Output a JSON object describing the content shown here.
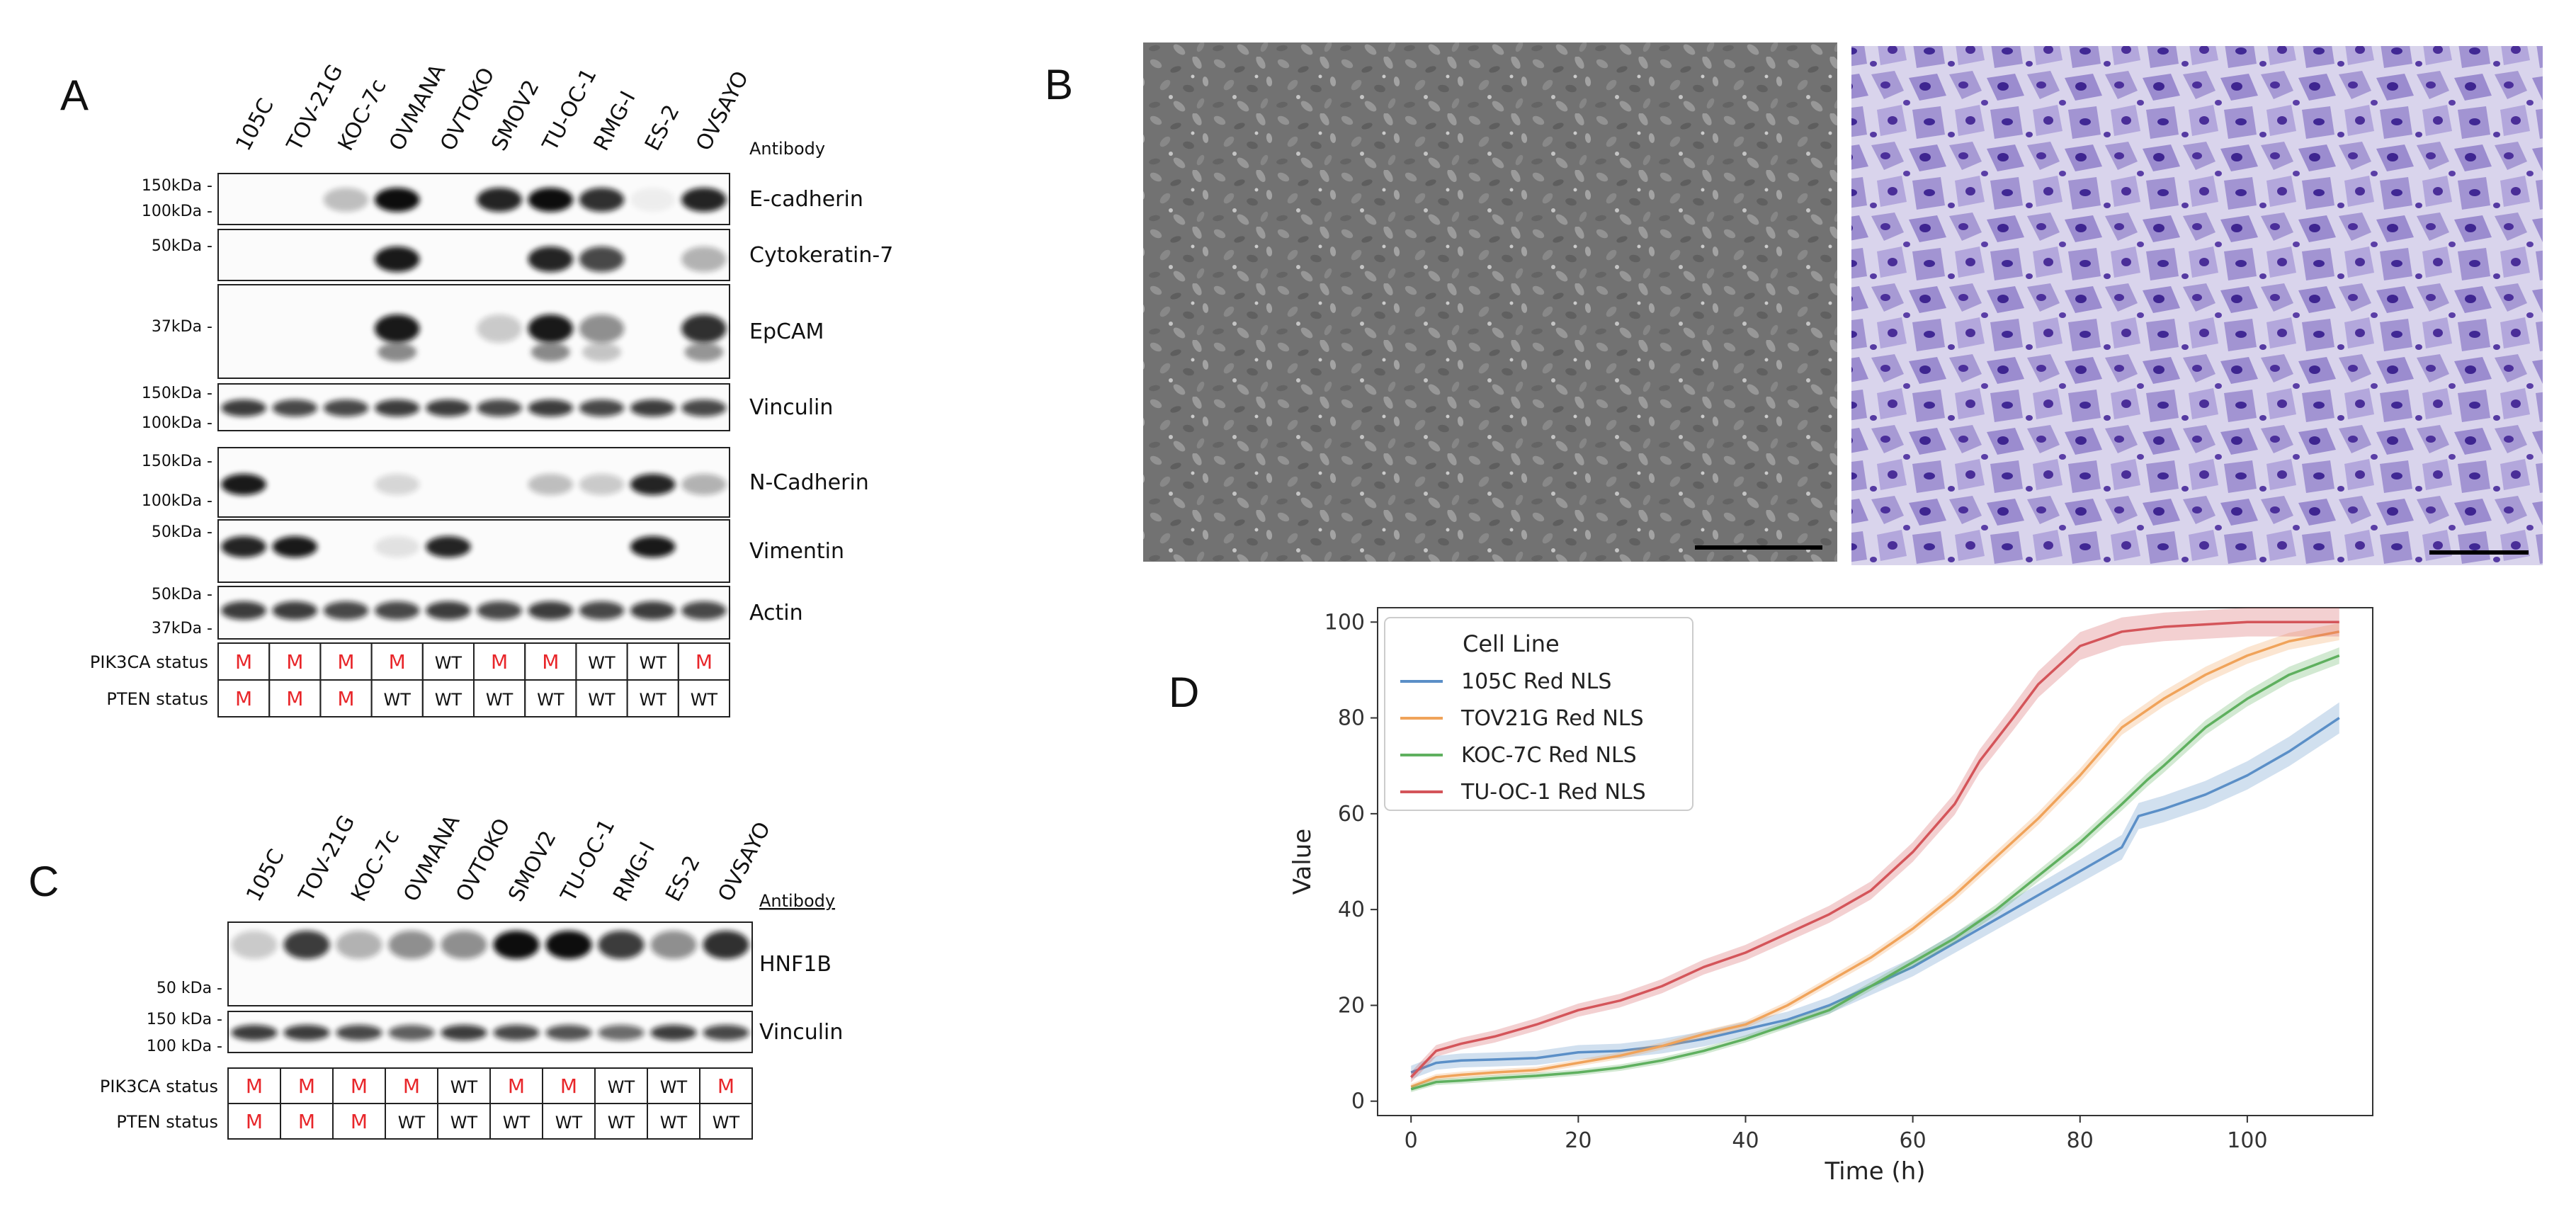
{
  "panels": {
    "a": "A",
    "b": "B",
    "c": "C",
    "d": "D"
  },
  "panel_a": {
    "lanes": [
      "105C",
      "TOV-21G",
      "KOC-7c",
      "OVMANA",
      "OVTOKO",
      "SMOV2",
      "TU-OC-1",
      "RMG-I",
      "ES-2",
      "OVSAYO"
    ],
    "antibody_header": "Antibody",
    "blots": [
      {
        "name": "E-cadherin",
        "markers": [
          "150kDa -",
          "100kDa -"
        ],
        "intensities": [
          0,
          0,
          0.25,
          1,
          0,
          0.9,
          1,
          0.85,
          0.05,
          0.9
        ]
      },
      {
        "name": "Cytokeratin-7",
        "markers": [
          "50kDa -"
        ],
        "intensities": [
          0,
          0,
          0,
          0.95,
          0,
          0,
          0.9,
          0.75,
          0,
          0.3
        ]
      },
      {
        "name": "EpCAM",
        "markers": [
          "37kDa -"
        ],
        "intensities": [
          0,
          0,
          0,
          0.95,
          0,
          0.2,
          0.95,
          0.45,
          0,
          0.85
        ]
      },
      {
        "name": "Vinculin",
        "markers": [
          "150kDa -",
          "100kDa -"
        ],
        "intensities": [
          0.8,
          0.75,
          0.75,
          0.8,
          0.8,
          0.75,
          0.8,
          0.75,
          0.8,
          0.75
        ]
      },
      {
        "name": "N-Cadherin",
        "markers": [
          "150kDa -",
          "100kDa -"
        ],
        "intensities": [
          0.95,
          0,
          0,
          0.15,
          0,
          0,
          0.25,
          0.2,
          0.9,
          0.3
        ]
      },
      {
        "name": "Vimentin",
        "markers": [
          "50kDa -"
        ],
        "intensities": [
          0.9,
          0.95,
          0,
          0.1,
          0.9,
          0,
          0,
          0,
          0.95,
          0
        ]
      },
      {
        "name": "Actin",
        "markers": [
          "50kDa -",
          "37kDa -"
        ],
        "intensities": [
          0.8,
          0.8,
          0.75,
          0.75,
          0.8,
          0.75,
          0.8,
          0.75,
          0.8,
          0.75
        ]
      }
    ],
    "pik3ca_label": "PIK3CA status",
    "pik3ca": [
      "M",
      "M",
      "M",
      "M",
      "WT",
      "M",
      "M",
      "WT",
      "WT",
      "M"
    ],
    "pten_label": "PTEN status",
    "pten": [
      "M",
      "M",
      "M",
      "WT",
      "WT",
      "WT",
      "WT",
      "WT",
      "WT",
      "WT"
    ]
  },
  "panel_b": {
    "left_image": "phase-contrast micrograph of cell monolayer",
    "right_image": "crystal violet stained cell micrograph"
  },
  "panel_c": {
    "lanes": [
      "105C",
      "TOV-21G",
      "KOC-7c",
      "OVMANA",
      "OVTOKO",
      "SMOV2",
      "TU-OC-1",
      "RMG-I",
      "ES-2",
      "OVSAYO"
    ],
    "antibody_header": "Antibody",
    "blots": [
      {
        "name": "HNF1B",
        "markers": [
          "50 kDa -"
        ],
        "intensities": [
          0.2,
          0.8,
          0.3,
          0.45,
          0.45,
          1,
          1,
          0.8,
          0.45,
          0.85
        ]
      },
      {
        "name": "Vinculin",
        "markers": [
          "150 kDa -",
          "100 kDa -"
        ],
        "intensities": [
          0.8,
          0.8,
          0.75,
          0.65,
          0.8,
          0.75,
          0.7,
          0.6,
          0.8,
          0.75
        ]
      }
    ],
    "pik3ca_label": "PIK3CA status",
    "pik3ca": [
      "M",
      "M",
      "M",
      "M",
      "WT",
      "M",
      "M",
      "WT",
      "WT",
      "M"
    ],
    "pten_label": "PTEN status",
    "pten": [
      "M",
      "M",
      "M",
      "WT",
      "WT",
      "WT",
      "WT",
      "WT",
      "WT",
      "WT"
    ]
  },
  "chart_data": {
    "type": "line",
    "title": "",
    "xlabel": "Time (h)",
    "ylabel": "Value",
    "xlim": [
      -4,
      115
    ],
    "ylim": [
      -3,
      103
    ],
    "xticks": [
      0,
      20,
      40,
      60,
      80,
      100
    ],
    "yticks": [
      0,
      20,
      40,
      60,
      80,
      100
    ],
    "legend_title": "Cell Line",
    "legend_position": "upper-left",
    "series": [
      {
        "name": "105C Red NLS",
        "color": "#5b8fc7",
        "band": 2.5,
        "x": [
          0,
          3,
          6,
          10,
          15,
          20,
          25,
          30,
          35,
          40,
          45,
          50,
          55,
          60,
          65,
          70,
          75,
          80,
          83,
          85,
          87,
          90,
          95,
          100,
          105,
          111
        ],
        "y": [
          6,
          8,
          8.5,
          8.7,
          9,
          10.2,
          10.5,
          11.5,
          13,
          15,
          17,
          20,
          24,
          28,
          33,
          38,
          43,
          48,
          51,
          53,
          59.5,
          61,
          64,
          68,
          73,
          80
        ]
      },
      {
        "name": "TOV21G Red NLS",
        "color": "#f0a35a",
        "band": 1.2,
        "x": [
          0,
          3,
          6,
          10,
          15,
          20,
          25,
          30,
          35,
          40,
          45,
          50,
          55,
          60,
          65,
          70,
          75,
          80,
          85,
          90,
          95,
          100,
          105,
          111
        ],
        "y": [
          3,
          5,
          5.5,
          6,
          6.5,
          8,
          9.5,
          11.5,
          14,
          16,
          20,
          25,
          30,
          36,
          43,
          51,
          59,
          68,
          78,
          84,
          89,
          93,
          96,
          98
        ]
      },
      {
        "name": "KOC-7C Red NLS",
        "color": "#5fb05f",
        "band": 1.2,
        "x": [
          0,
          3,
          6,
          10,
          15,
          20,
          25,
          30,
          35,
          40,
          45,
          50,
          55,
          60,
          65,
          70,
          75,
          80,
          85,
          88,
          90,
          95,
          100,
          105,
          111
        ],
        "y": [
          2.5,
          4,
          4.3,
          4.8,
          5.3,
          6,
          7,
          8.5,
          10.5,
          13,
          16,
          19,
          24,
          29,
          34,
          40,
          47,
          54,
          62,
          67,
          70,
          78,
          84,
          89,
          93
        ]
      },
      {
        "name": "TU-OC-1 Red NLS",
        "color": "#d4555a",
        "band": 2.0,
        "x": [
          0,
          3,
          6,
          10,
          15,
          20,
          25,
          30,
          35,
          40,
          45,
          50,
          55,
          60,
          65,
          68,
          72,
          75,
          80,
          85,
          90,
          95,
          100,
          105,
          111
        ],
        "y": [
          5,
          10.5,
          12,
          13.5,
          16,
          19,
          21,
          24,
          28,
          31,
          35,
          39,
          44,
          52,
          62,
          71,
          80,
          87,
          95,
          98,
          99,
          99.5,
          100,
          100,
          100
        ]
      }
    ]
  }
}
